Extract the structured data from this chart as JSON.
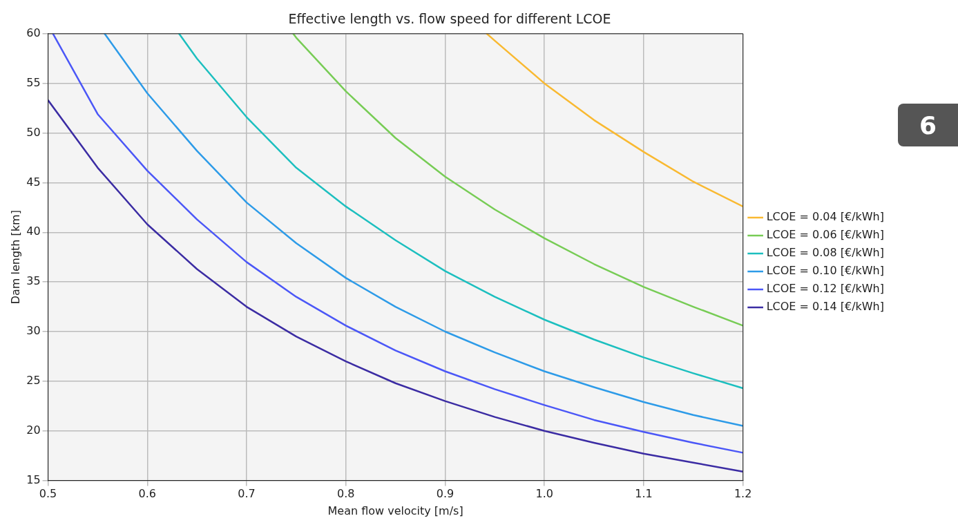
{
  "chart_data": {
    "type": "line",
    "title": "Effective length vs. flow speed for different LCOE",
    "xlabel": "Mean flow velocity [m/s]",
    "ylabel": "Dam length [km]",
    "series": [
      {
        "name": "LCOE = 0.04 [€/kWh]",
        "color": "#f9b931",
        "x": [
          0.942,
          0.95,
          1.0,
          1.05,
          1.1,
          1.15,
          1.2
        ],
        "values": [
          60,
          59.3,
          55.0,
          51.3,
          48.1,
          45.1,
          42.6
        ]
      },
      {
        "name": "LCOE = 0.06 [€/kWh]",
        "color": "#77cc55",
        "x": [
          0.747,
          0.75,
          0.8,
          0.85,
          0.9,
          0.95,
          1.0,
          1.05,
          1.1,
          1.15,
          1.2
        ],
        "values": [
          60,
          59.6,
          54.2,
          49.5,
          45.6,
          42.3,
          39.4,
          36.8,
          34.5,
          32.5,
          30.6
        ]
      },
      {
        "name": "LCOE = 0.08 [€/kWh]",
        "color": "#1cbfbf",
        "x": [
          0.632,
          0.65,
          0.7,
          0.75,
          0.8,
          0.85,
          0.9,
          0.95,
          1.0,
          1.05,
          1.1,
          1.15,
          1.2
        ],
        "values": [
          60,
          57.5,
          51.6,
          46.5,
          42.6,
          39.2,
          36.1,
          33.5,
          31.2,
          29.2,
          27.4,
          25.8,
          24.3
        ]
      },
      {
        "name": "LCOE = 0.10 [€/kWh]",
        "color": "#2d9be8",
        "x": [
          0.557,
          0.6,
          0.65,
          0.7,
          0.75,
          0.8,
          0.85,
          0.9,
          0.95,
          1.0,
          1.05,
          1.1,
          1.15,
          1.2
        ],
        "values": [
          60,
          54.0,
          48.2,
          43.0,
          38.9,
          35.4,
          32.5,
          30.0,
          27.9,
          26.0,
          24.4,
          22.9,
          21.6,
          20.5
        ]
      },
      {
        "name": "LCOE = 0.12 [€/kWh]",
        "color": "#4b57f7",
        "x": [
          0.505,
          0.55,
          0.6,
          0.65,
          0.7,
          0.75,
          0.8,
          0.85,
          0.9,
          0.95,
          1.0,
          1.05,
          1.1,
          1.15,
          1.2
        ],
        "values": [
          60,
          51.9,
          46.2,
          41.3,
          37.0,
          33.5,
          30.6,
          28.1,
          26.0,
          24.2,
          22.6,
          21.1,
          19.9,
          18.8,
          17.8
        ]
      },
      {
        "name": "LCOE = 0.14 [€/kWh]",
        "color": "#3b2ca3",
        "x": [
          0.5,
          0.55,
          0.6,
          0.65,
          0.7,
          0.75,
          0.8,
          0.85,
          0.9,
          0.95,
          1.0,
          1.05,
          1.1,
          1.15,
          1.2
        ],
        "values": [
          53.3,
          46.5,
          40.8,
          36.3,
          32.5,
          29.5,
          27.0,
          24.8,
          23.0,
          21.4,
          20.0,
          18.8,
          17.7,
          16.8,
          15.9
        ]
      }
    ],
    "xlim": [
      0.5,
      1.2
    ],
    "xticks": [
      0.5,
      0.6,
      0.7,
      0.8,
      0.9,
      {
        "value": 1,
        "label": "1.0"
      },
      1.1,
      1.2
    ],
    "ylim": [
      15,
      60
    ],
    "yticks": [
      15,
      20,
      25,
      30,
      35,
      40,
      45,
      50,
      55,
      60
    ],
    "grid": true,
    "legend": "right",
    "marker": "none",
    "line_style": "solid",
    "annotations": [
      "6"
    ]
  }
}
